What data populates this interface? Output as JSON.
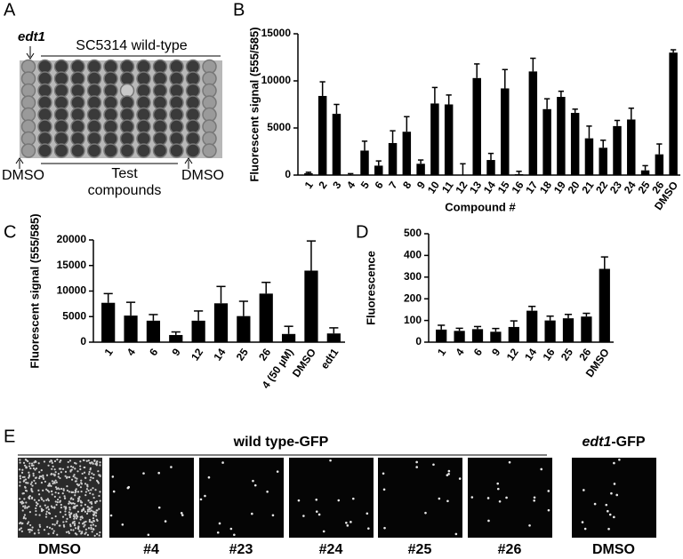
{
  "panel_a": {
    "label": "A",
    "strain": "edt1",
    "title": "SC5314 wild-type",
    "left_label": "DMSO",
    "middle_label": "Test compounds",
    "right_label": "DMSO"
  },
  "chart_data": [
    {
      "type": "bar",
      "label": "B",
      "y_label": "Fluorescent signal (555/585)",
      "x_label": "Compound #",
      "categories": [
        "1",
        "2",
        "3",
        "4",
        "5",
        "6",
        "7",
        "8",
        "9",
        "10",
        "11",
        "12",
        "13",
        "14",
        "15",
        "16",
        "17",
        "18",
        "19",
        "20",
        "21",
        "22",
        "23",
        "24",
        "25",
        "26",
        "DMSO"
      ],
      "values": [
        200,
        8400,
        6500,
        50,
        2600,
        1000,
        3400,
        4600,
        1200,
        7600,
        7500,
        0,
        10300,
        1600,
        9200,
        100,
        11000,
        7000,
        8300,
        6600,
        3900,
        2900,
        5200,
        5900,
        500,
        2200,
        13000
      ],
      "errors": [
        100,
        1500,
        1000,
        100,
        1000,
        500,
        1300,
        1600,
        400,
        1700,
        1000,
        1200,
        1500,
        700,
        2000,
        300,
        1400,
        1100,
        600,
        400,
        1300,
        800,
        600,
        1200,
        500,
        1100,
        300
      ],
      "color": "#000000",
      "ylim": [
        0,
        15000
      ],
      "yticks": [
        0,
        5000,
        10000,
        15000
      ]
    },
    {
      "type": "bar",
      "label": "C",
      "y_label": "Fluorescent signal (555/585)",
      "categories": [
        "1",
        "4",
        "6",
        "9",
        "12",
        "14",
        "25",
        "26",
        "4 (50 µM)",
        "DMSO",
        "edt1"
      ],
      "values": [
        7700,
        5200,
        4200,
        1400,
        4200,
        7600,
        5100,
        9500,
        1600,
        14000,
        1700
      ],
      "errors": [
        1800,
        2600,
        1200,
        600,
        1900,
        3300,
        2900,
        2200,
        1500,
        5800,
        1100
      ],
      "color": "#000000",
      "ylim": [
        0,
        20000
      ],
      "yticks": [
        0,
        5000,
        10000,
        15000,
        20000
      ]
    },
    {
      "type": "bar",
      "label": "D",
      "y_label": "Fluorescence",
      "categories": [
        "1",
        "4",
        "6",
        "9",
        "12",
        "14",
        "16",
        "25",
        "26",
        "DMSO"
      ],
      "values": [
        58,
        52,
        60,
        48,
        70,
        145,
        100,
        110,
        118,
        338
      ],
      "errors": [
        20,
        12,
        12,
        15,
        28,
        20,
        20,
        18,
        15,
        55
      ],
      "color": "#000000",
      "ylim": [
        0,
        500
      ],
      "yticks": [
        0,
        100,
        200,
        300,
        400,
        500
      ]
    }
  ],
  "panel_e": {
    "label": "E",
    "group_title": "wild type-GFP",
    "mutant_title": [
      "edt1",
      "-GFP"
    ],
    "images": [
      "DMSO",
      "#4",
      "#23",
      "#24",
      "#25",
      "#26"
    ],
    "mutant_image": "DMSO"
  }
}
